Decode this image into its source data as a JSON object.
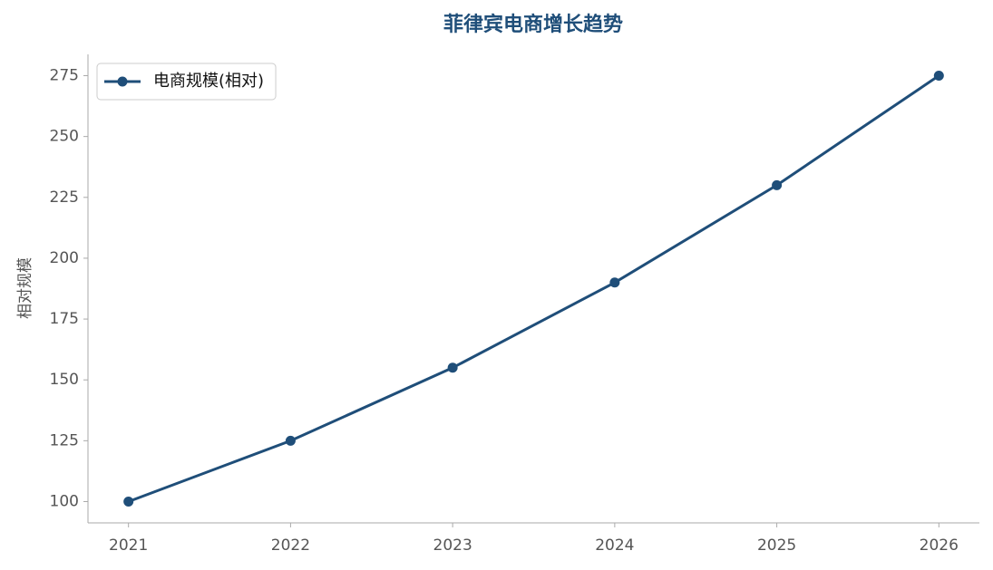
{
  "chart_data": {
    "type": "line",
    "title": "菲律宾电商增长趋势",
    "ylabel": "相对规模",
    "x": [
      2021,
      2022,
      2023,
      2024,
      2025,
      2026
    ],
    "series": [
      {
        "name": "电商规模(相对)",
        "color": "#1f4e79",
        "values": [
          100,
          125,
          155,
          190,
          230,
          275
        ]
      }
    ],
    "xlim": [
      2020.75,
      2026.25
    ],
    "xticks": [
      2021,
      2022,
      2023,
      2024,
      2025,
      2026
    ],
    "ylim": [
      91.25,
      283.75
    ],
    "yticks": [
      100,
      125,
      150,
      175,
      200,
      225,
      250,
      275
    ],
    "grid": false,
    "legend": "upper left"
  }
}
